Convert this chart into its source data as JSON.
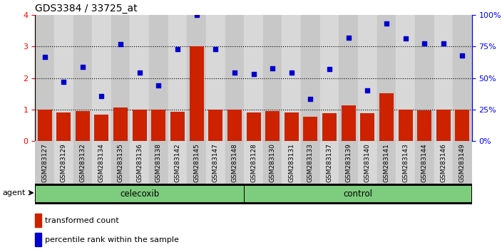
{
  "title": "GDS3384 / 33725_at",
  "samples": [
    "GSM283127",
    "GSM283129",
    "GSM283132",
    "GSM283134",
    "GSM283135",
    "GSM283136",
    "GSM283138",
    "GSM283142",
    "GSM283145",
    "GSM283147",
    "GSM283148",
    "GSM283128",
    "GSM283130",
    "GSM283131",
    "GSM283133",
    "GSM283137",
    "GSM283139",
    "GSM283140",
    "GSM283141",
    "GSM283143",
    "GSM283144",
    "GSM283146",
    "GSM283149"
  ],
  "bar_values": [
    1.0,
    0.9,
    0.95,
    0.85,
    1.07,
    1.0,
    1.0,
    0.93,
    3.0,
    1.0,
    1.0,
    0.9,
    0.95,
    0.9,
    0.78,
    0.88,
    1.13,
    0.88,
    1.52,
    1.0,
    0.97,
    1.0,
    1.0
  ],
  "percentile_values": [
    2.68,
    1.87,
    2.35,
    1.42,
    3.08,
    2.17,
    1.77,
    2.92,
    4.0,
    2.93,
    2.17,
    2.12,
    2.3,
    2.18,
    1.35,
    2.28,
    3.28,
    1.62,
    3.73,
    3.27,
    3.1,
    3.1,
    2.72
  ],
  "celecoxib_count": 11,
  "control_count": 12,
  "bar_color": "#CC2200",
  "dot_color": "#0000CC",
  "green_color": "#7ECD7E",
  "agent_label": "agent",
  "celecoxib_label": "celecoxib",
  "control_label": "control",
  "legend_bar_label": "transformed count",
  "legend_dot_label": "percentile rank within the sample",
  "ylim_left": [
    0,
    4
  ],
  "yticks_left": [
    0,
    1,
    2,
    3,
    4
  ],
  "bg_colors": [
    "#C8C8C8",
    "#D8D8D8"
  ]
}
